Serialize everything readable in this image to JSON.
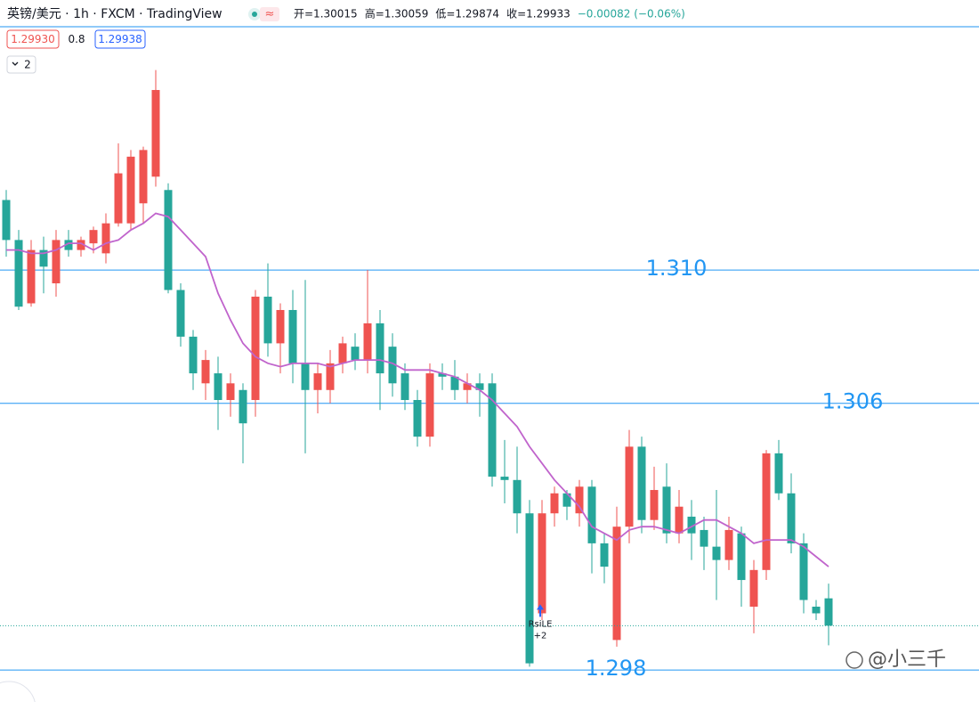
{
  "chart_data": {
    "type": "candlestick",
    "title": "英镑/美元 · 1h · FXCM · TradingView",
    "ohlc_legend": [
      "开=1.30015",
      "高=1.30059",
      "低=1.29874",
      "收=1.29933",
      "−0.00082 (−0.06%)"
    ],
    "bid_label": "1.29930",
    "spread_label": "0.8",
    "ask_label": "1.29938",
    "indicator_badge": "2",
    "up_color": "#ef5350",
    "down_color": "#26a69a",
    "ylim": [
      1.29704,
      1.3181
    ],
    "ohlc": [
      [
        1.3121,
        1.3124,
        1.3104,
        1.3109
      ],
      [
        1.3109,
        1.3112,
        1.3088,
        1.3089
      ],
      [
        1.309,
        1.3109,
        1.3089,
        1.3106
      ],
      [
        1.3106,
        1.311,
        1.3093,
        1.3101
      ],
      [
        1.3096,
        1.3112,
        1.3092,
        1.3109
      ],
      [
        1.3109,
        1.3112,
        1.3104,
        1.3106
      ],
      [
        1.3106,
        1.311,
        1.3104,
        1.3109
      ],
      [
        1.3108,
        1.3113,
        1.3105,
        1.3112
      ],
      [
        1.3105,
        1.3117,
        1.3102,
        1.3114
      ],
      [
        1.3114,
        1.3138,
        1.3113,
        1.3129
      ],
      [
        1.3114,
        1.3136,
        1.3112,
        1.3134
      ],
      [
        1.312,
        1.3137,
        1.3114,
        1.3136
      ],
      [
        1.3128,
        1.316,
        1.3125,
        1.3154
      ],
      [
        1.3124,
        1.3126,
        1.3093,
        1.3094
      ],
      [
        1.3094,
        1.3096,
        1.3077,
        1.308
      ],
      [
        1.308,
        1.3082,
        1.3064,
        1.3069
      ],
      [
        1.3066,
        1.3076,
        1.3061,
        1.3073
      ],
      [
        1.3069,
        1.3074,
        1.3052,
        1.3061
      ],
      [
        1.3061,
        1.3069,
        1.3056,
        1.3066
      ],
      [
        1.3064,
        1.3066,
        1.3042,
        1.3054
      ],
      [
        1.3061,
        1.3094,
        1.3056,
        1.3092
      ],
      [
        1.3092,
        1.3102,
        1.3074,
        1.3078
      ],
      [
        1.3078,
        1.309,
        1.3069,
        1.3088
      ],
      [
        1.3088,
        1.3094,
        1.3066,
        1.3072
      ],
      [
        1.3072,
        1.3097,
        1.3045,
        1.3064
      ],
      [
        1.3064,
        1.3072,
        1.3057,
        1.3069
      ],
      [
        1.3064,
        1.3076,
        1.306,
        1.3072
      ],
      [
        1.3072,
        1.308,
        1.3069,
        1.3078
      ],
      [
        1.3077,
        1.3081,
        1.307,
        1.3073
      ],
      [
        1.3073,
        1.31,
        1.3069,
        1.3084
      ],
      [
        1.3084,
        1.3088,
        1.3058,
        1.3069
      ],
      [
        1.3077,
        1.3081,
        1.3062,
        1.3066
      ],
      [
        1.3069,
        1.3072,
        1.3058,
        1.3061
      ],
      [
        1.3061,
        1.3064,
        1.3047,
        1.305
      ],
      [
        1.305,
        1.3072,
        1.3047,
        1.3069
      ],
      [
        1.3069,
        1.3072,
        1.3064,
        1.3068
      ],
      [
        1.3068,
        1.3073,
        1.3061,
        1.3064
      ],
      [
        1.3064,
        1.3069,
        1.306,
        1.3066
      ],
      [
        1.3066,
        1.3069,
        1.3056,
        1.3064
      ],
      [
        1.3066,
        1.3069,
        1.3035,
        1.3038
      ],
      [
        1.3038,
        1.3049,
        1.303,
        1.3037
      ],
      [
        1.3037,
        1.3047,
        1.3021,
        1.3027
      ],
      [
        1.3027,
        1.3031,
        1.2981,
        1.2982
      ],
      [
        1.2997,
        1.3031,
        1.2995,
        1.3027
      ],
      [
        1.3027,
        1.3035,
        1.3023,
        1.3033
      ],
      [
        1.3033,
        1.3034,
        1.3025,
        1.3029
      ],
      [
        1.3027,
        1.3037,
        1.3023,
        1.3035
      ],
      [
        1.3035,
        1.3037,
        1.3009,
        1.3018
      ],
      [
        1.3018,
        1.3021,
        1.3006,
        1.3011
      ],
      [
        1.2989,
        1.3029,
        1.2987,
        1.3023
      ],
      [
        1.3023,
        1.3052,
        1.3018,
        1.3047
      ],
      [
        1.3047,
        1.305,
        1.3021,
        1.3025
      ],
      [
        1.3025,
        1.3041,
        1.3022,
        1.3034
      ],
      [
        1.3035,
        1.3042,
        1.3018,
        1.3021
      ],
      [
        1.3021,
        1.3034,
        1.3018,
        1.3029
      ],
      [
        1.3026,
        1.3031,
        1.3013,
        1.3021
      ],
      [
        1.3022,
        1.3026,
        1.301,
        1.3017
      ],
      [
        1.3017,
        1.3034,
        1.3001,
        1.3013
      ],
      [
        1.3013,
        1.3026,
        1.301,
        1.3022
      ],
      [
        1.3021,
        1.3023,
        1.2999,
        1.3007
      ],
      [
        1.2999,
        1.3013,
        1.2991,
        1.301
      ],
      [
        1.301,
        1.3046,
        1.3007,
        1.3045
      ],
      [
        1.3045,
        1.3049,
        1.3031,
        1.3033
      ],
      [
        1.3033,
        1.3039,
        1.3015,
        1.3018
      ],
      [
        1.3018,
        1.3021,
        1.2997,
        1.3001
      ],
      [
        1.2999,
        1.3001,
        1.2995,
        1.2997
      ],
      [
        1.30015,
        1.30059,
        1.29874,
        1.29933
      ]
    ],
    "ma": {
      "color": "#c064cc",
      "values": [
        1.3106,
        1.3106,
        1.3105,
        1.3105,
        1.3106,
        1.3108,
        1.3108,
        1.3106,
        1.3108,
        1.3109,
        1.3112,
        1.3114,
        1.3117,
        1.3116,
        1.3112,
        1.3108,
        1.3104,
        1.3093,
        1.3085,
        1.3078,
        1.3074,
        1.3072,
        1.3071,
        1.3072,
        1.3072,
        1.3072,
        1.3071,
        1.3072,
        1.3073,
        1.3073,
        1.3073,
        1.3072,
        1.307,
        1.307,
        1.307,
        1.3069,
        1.3068,
        1.3066,
        1.3064,
        1.3061,
        1.3057,
        1.3053,
        1.3047,
        1.3042,
        1.3037,
        1.3033,
        1.3029,
        1.3023,
        1.3021,
        1.3019,
        1.3022,
        1.3023,
        1.3023,
        1.3022,
        1.3021,
        1.3023,
        1.3025,
        1.3025,
        1.3023,
        1.3021,
        1.3018,
        1.3019,
        1.3019,
        1.3019,
        1.3017,
        1.3014,
        1.3011
      ]
    },
    "hlines": {
      "color": "#2196f3",
      "levels": [
        1.31,
        1.306,
        1.298
      ],
      "labels": [
        "1.310",
        "1.306",
        "1.298"
      ]
    },
    "signal": {
      "text": "RsiLE",
      "sub": "+2"
    },
    "watermark": "@小三千"
  }
}
